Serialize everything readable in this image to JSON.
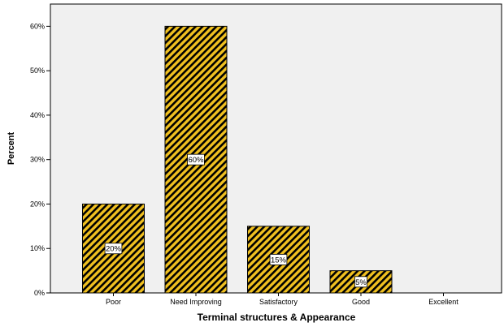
{
  "chart_data": {
    "type": "bar",
    "title": "",
    "xlabel": "Terminal structures & Appearance",
    "ylabel": "Percent",
    "categories": [
      "Poor",
      "Need Improving",
      "Satisfactory",
      "Good",
      "Excellent"
    ],
    "values": [
      20,
      60,
      15,
      5,
      0
    ],
    "data_labels": [
      "20%",
      "60%",
      "15%",
      "5%",
      ""
    ],
    "ylim": [
      0,
      65
    ],
    "yticks": [
      0,
      10,
      20,
      30,
      40,
      50,
      60
    ],
    "ytick_labels": [
      "0%",
      "10%",
      "20%",
      "30%",
      "40%",
      "50%",
      "60%"
    ],
    "grid": false,
    "legend": "none",
    "colors": {
      "plot_background": "#f0f0f0",
      "bar_fill": "#f0c020",
      "bar_hatch": "#000000",
      "bar_outline": "#000000",
      "axis": "#000000"
    }
  }
}
